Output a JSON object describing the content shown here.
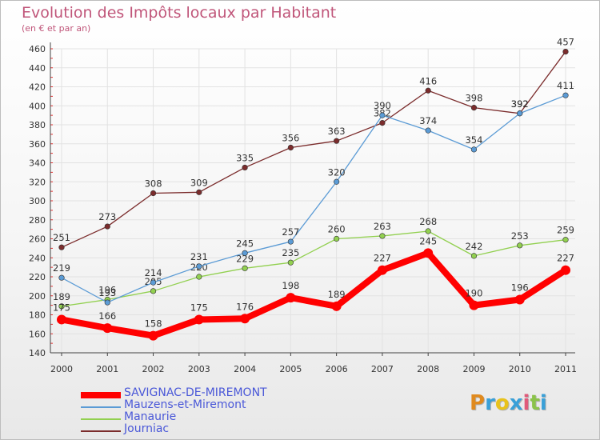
{
  "title": "Evolution des Impôts locaux par Habitant",
  "subtitle": "(en € et par an)",
  "logo": {
    "text": "Proxiti",
    "letter_colors": [
      "#e08a1e",
      "#3aa0d8",
      "#e8c21c",
      "#3aa0d8",
      "#e05a7a",
      "#8bc34a",
      "#3aa0d8"
    ]
  },
  "chart_data": {
    "type": "line",
    "title": "Evolution des Impôts locaux par Habitant",
    "subtitle": "(en € et par an)",
    "x": [
      "2000",
      "2001",
      "2002",
      "2003",
      "2004",
      "2005",
      "2006",
      "2007",
      "2008",
      "2009",
      "2010",
      "2011"
    ],
    "ylim": [
      140,
      460
    ],
    "yticks": [
      140,
      160,
      180,
      200,
      220,
      240,
      260,
      280,
      300,
      320,
      340,
      360,
      380,
      400,
      420,
      440,
      460
    ],
    "grid": true,
    "legend_position": "bottom-left",
    "series": [
      {
        "name": "SAVIGNAC-DE-MIREMONT",
        "color": "#ff0000",
        "values": [
          175,
          166,
          158,
          175,
          176,
          198,
          189,
          227,
          245,
          190,
          196,
          227
        ]
      },
      {
        "name": "Mauzens-et-Miremont",
        "color": "#5b9bd5",
        "values": [
          219,
          193,
          214,
          231,
          245,
          257,
          320,
          390,
          374,
          354,
          392,
          411
        ]
      },
      {
        "name": "Manaurie",
        "color": "#92d050",
        "values": [
          189,
          196,
          205,
          220,
          229,
          235,
          260,
          263,
          268,
          242,
          253,
          259
        ]
      },
      {
        "name": "Journiac",
        "color": "#7b2c2c",
        "values": [
          251,
          273,
          308,
          309,
          335,
          356,
          363,
          382,
          416,
          398,
          392,
          457
        ]
      }
    ]
  }
}
